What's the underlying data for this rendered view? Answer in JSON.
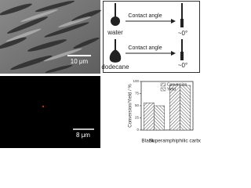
{
  "sem_image": {
    "scale_bar": "10 μm"
  },
  "schematic": {
    "rows": [
      {
        "liquid": "water",
        "arrow_label": "Contact angle",
        "result": "~0°"
      },
      {
        "liquid": "dodecane",
        "arrow_label": "Contact angle",
        "result": "~0°"
      }
    ]
  },
  "fluorescence_image": {
    "scale_bar": "8 μm"
  },
  "chart_data": {
    "type": "bar",
    "y_label": "Conversion/Yield / %",
    "categories": [
      "Blank",
      "Superamphiphilic carbon"
    ],
    "series": [
      {
        "name": "Conversion",
        "color": "#555555",
        "values": [
          56,
          93
        ]
      },
      {
        "name": "Yield",
        "color": "#555555",
        "values": [
          50,
          92
        ]
      }
    ],
    "ylim": [
      0,
      100
    ],
    "yticks": [
      0,
      25,
      50,
      75,
      100
    ]
  }
}
